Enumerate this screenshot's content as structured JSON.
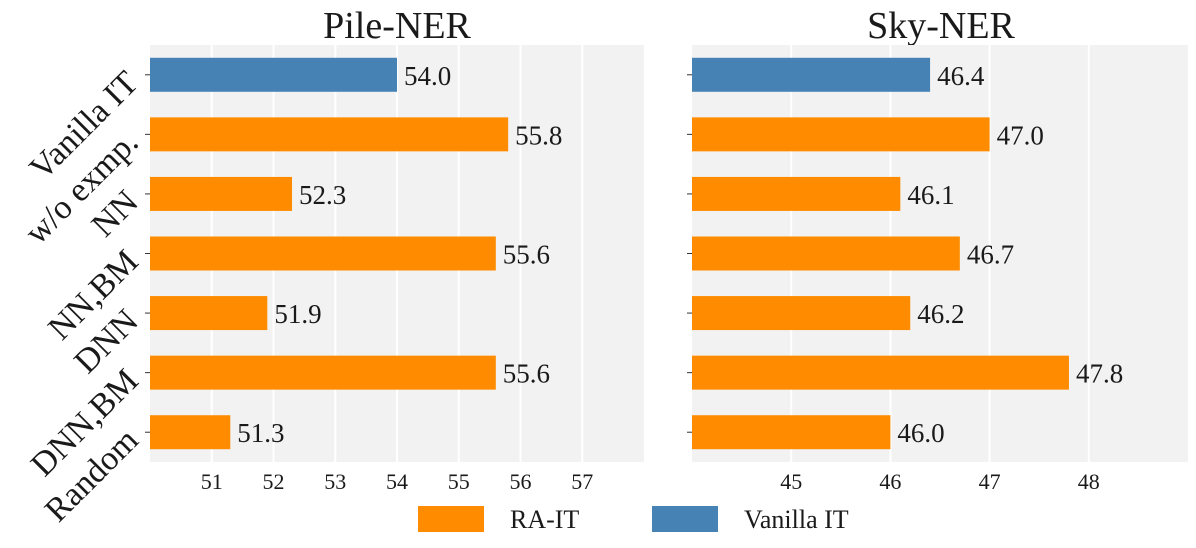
{
  "chart_data": [
    {
      "type": "bar",
      "orientation": "horizontal",
      "title": "Pile-NER",
      "categories": [
        "Vanilla IT",
        "w/o exmp.",
        "NN",
        "NN,BM",
        "DNN",
        "DNN,BM",
        "Random"
      ],
      "values": [
        54.0,
        55.8,
        52.3,
        55.6,
        51.9,
        55.6,
        51.3
      ],
      "series_of": [
        "Vanilla IT",
        "RA-IT",
        "RA-IT",
        "RA-IT",
        "RA-IT",
        "RA-IT",
        "RA-IT"
      ],
      "value_labels": [
        "54.0",
        "55.8",
        "52.3",
        "55.6",
        "51.9",
        "55.6",
        "51.3"
      ],
      "xlim": [
        50.0,
        58.0
      ],
      "xticks": [
        51,
        52,
        53,
        54,
        55,
        56,
        57
      ],
      "grid": true,
      "xlabel": "",
      "ylabel": ""
    },
    {
      "type": "bar",
      "orientation": "horizontal",
      "title": "Sky-NER",
      "categories": [
        "Vanilla IT",
        "w/o exmp.",
        "NN",
        "NN,BM",
        "DNN",
        "DNN,BM",
        "Random"
      ],
      "values": [
        46.4,
        47.0,
        46.1,
        46.7,
        46.2,
        47.8,
        46.0
      ],
      "series_of": [
        "Vanilla IT",
        "RA-IT",
        "RA-IT",
        "RA-IT",
        "RA-IT",
        "RA-IT",
        "RA-IT"
      ],
      "value_labels": [
        "46.4",
        "47.0",
        "46.1",
        "46.7",
        "46.2",
        "47.8",
        "46.0"
      ],
      "xlim": [
        44.0,
        49.0
      ],
      "xticks": [
        45,
        46,
        47,
        48
      ],
      "grid": true,
      "xlabel": "",
      "ylabel": ""
    }
  ],
  "legend": {
    "placement": "bottom-center",
    "items": [
      {
        "label": "RA-IT",
        "color": "#ff8c00"
      },
      {
        "label": "Vanilla IT",
        "color": "#4682b4"
      }
    ]
  },
  "colors": {
    "RA-IT": "#ff8c00",
    "Vanilla IT": "#4682b4",
    "panel_bg": "#f2f2f2",
    "grid": "#ffffff"
  }
}
